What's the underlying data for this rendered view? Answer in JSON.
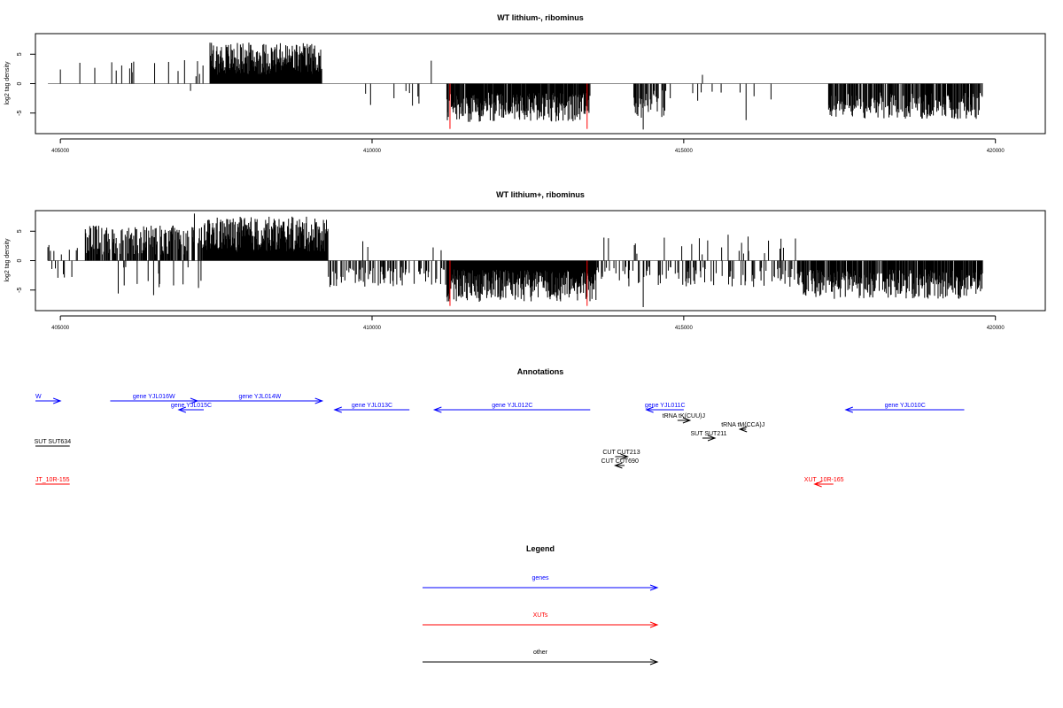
{
  "chart_data": [
    {
      "type": "bar",
      "title": "WT lithium-, ribominus",
      "xlabel": "",
      "ylabel": "log2 tag density",
      "xlim": [
        404600,
        420800
      ],
      "ylim": [
        -8.5,
        8.5
      ],
      "yticks": [
        "-5",
        "0",
        "5"
      ],
      "xticks": [
        "405000",
        "410000",
        "415000",
        "420000"
      ],
      "grid": false,
      "baseline": 0,
      "segments": [
        {
          "from": 404800,
          "to": 406600,
          "sign": 1,
          "density": 0.06,
          "amp": [
            1,
            3.8
          ],
          "neg_prob": 0.05
        },
        {
          "from": 406600,
          "to": 407300,
          "sign": 1,
          "density": 0.08,
          "amp": [
            1,
            4
          ],
          "neg_prob": 0.15
        },
        {
          "from": 407400,
          "to": 409200,
          "sign": 1,
          "density": 1.0,
          "amp": [
            1.5,
            7
          ],
          "neg_prob": 0
        },
        {
          "from": 409200,
          "to": 411200,
          "sign": -1,
          "density": 0.02,
          "amp": [
            1,
            4
          ],
          "neg_prob": 0
        },
        {
          "from": 411200,
          "to": 413500,
          "sign": -1,
          "density": 0.9,
          "amp": [
            1.5,
            6.5
          ],
          "neg_prob": 0
        },
        {
          "from": 414200,
          "to": 414800,
          "sign": -1,
          "density": 0.5,
          "amp": [
            1,
            6
          ],
          "neg_prob": 0
        },
        {
          "from": 414800,
          "to": 417300,
          "sign": -1,
          "density": 0.02,
          "amp": [
            1,
            3
          ],
          "neg_prob": 0
        },
        {
          "from": 417300,
          "to": 419800,
          "sign": -1,
          "density": 0.7,
          "amp": [
            1.5,
            6
          ],
          "neg_prob": 0
        }
      ],
      "highlight_bars": [
        {
          "x": 411250,
          "value": -7.7,
          "color": "#ff0000"
        },
        {
          "x": 413450,
          "value": -7.7,
          "color": "#ff0000"
        }
      ],
      "isolated_bars": [
        {
          "x": 410950,
          "value": 3.9
        },
        {
          "x": 415300,
          "value": 1.5
        },
        {
          "x": 416000,
          "value": -6.2
        },
        {
          "x": 414350,
          "value": -7.8
        }
      ]
    },
    {
      "type": "bar",
      "title": "WT lithium+, ribominus",
      "xlabel": "",
      "ylabel": "log2 tag density",
      "xlim": [
        404600,
        420800
      ],
      "ylim": [
        -8.5,
        8.5
      ],
      "yticks": [
        "-5",
        "0",
        "5"
      ],
      "xticks": [
        "405000",
        "410000",
        "415000",
        "420000"
      ],
      "grid": false,
      "baseline": 0,
      "segments": [
        {
          "from": 404800,
          "to": 405400,
          "sign": 1,
          "density": 0.2,
          "amp": [
            1,
            3
          ],
          "neg_prob": 0.35
        },
        {
          "from": 405400,
          "to": 407300,
          "sign": 1,
          "density": 0.75,
          "amp": [
            1,
            6
          ],
          "neg_prob": 0.1
        },
        {
          "from": 407300,
          "to": 409300,
          "sign": 1,
          "density": 1.0,
          "amp": [
            1.5,
            7.5
          ],
          "neg_prob": 0
        },
        {
          "from": 409300,
          "to": 411200,
          "sign": -1,
          "density": 0.35,
          "amp": [
            1,
            4.5
          ],
          "neg_prob": 0.05
        },
        {
          "from": 411200,
          "to": 413600,
          "sign": -1,
          "density": 1.0,
          "amp": [
            1.5,
            7
          ],
          "neg_prob": 0
        },
        {
          "from": 413600,
          "to": 416800,
          "sign": -1,
          "density": 0.3,
          "amp": [
            1,
            4.5
          ],
          "neg_prob": 0.2
        },
        {
          "from": 416800,
          "to": 419800,
          "sign": -1,
          "density": 0.8,
          "amp": [
            1.5,
            6.5
          ],
          "neg_prob": 0
        }
      ],
      "highlight_bars": [
        {
          "x": 411250,
          "value": -7.7,
          "color": "#ff0000"
        },
        {
          "x": 413450,
          "value": -7.7,
          "color": "#ff0000"
        }
      ],
      "isolated_bars": [
        {
          "x": 407150,
          "value": 8.0
        },
        {
          "x": 415250,
          "value": 3.8
        },
        {
          "x": 414350,
          "value": -7.9
        }
      ]
    }
  ],
  "annotations": {
    "title": "Annotations",
    "features": [
      {
        "label": "W",
        "x1": 404600,
        "x2": 405000,
        "row": 0,
        "dir": "right",
        "color": "#0000ff",
        "label_x": 404600,
        "anchor": "start"
      },
      {
        "label": "gene YJL016W",
        "x1": 405800,
        "x2": 407200,
        "row": 0,
        "dir": "right",
        "color": "#0000ff"
      },
      {
        "label": "gene YJL014W",
        "x1": 407200,
        "x2": 409200,
        "row": 0,
        "dir": "right",
        "color": "#0000ff"
      },
      {
        "label": "gene YJL015C",
        "x1": 406900,
        "x2": 407300,
        "row": 1,
        "dir": "left",
        "color": "#0000ff"
      },
      {
        "label": "gene YJL013C",
        "x1": 409400,
        "x2": 410600,
        "row": 2,
        "dir": "left",
        "color": "#0000ff"
      },
      {
        "label": "gene YJL012C",
        "x1": 411000,
        "x2": 413500,
        "row": 2,
        "dir": "left",
        "color": "#0000ff"
      },
      {
        "label": "gene YJL011C",
        "x1": 414400,
        "x2": 415000,
        "row": 2,
        "dir": "left",
        "color": "#0000ff"
      },
      {
        "label": "gene YJL010C",
        "x1": 417600,
        "x2": 419500,
        "row": 2,
        "dir": "left",
        "color": "#0000ff"
      },
      {
        "label": "tRNA tK(CUU)J",
        "x1": 414900,
        "x2": 415100,
        "row": 3,
        "dir": "right",
        "color": "#000000"
      },
      {
        "label": "tRNA tM(CCA)J",
        "x1": 415900,
        "x2": 416000,
        "row": 4,
        "dir": "left",
        "color": "#000000"
      },
      {
        "label": "SUT SUT211",
        "x1": 415300,
        "x2": 415500,
        "row": 5,
        "dir": "right",
        "color": "#000000"
      },
      {
        "label": "SUT SUT634",
        "x1": 404600,
        "x2": 405150,
        "row": 6,
        "dir": "none",
        "color": "#000000"
      },
      {
        "label": "CUT CUT213",
        "x1": 413900,
        "x2": 414100,
        "row": 7,
        "dir": "right",
        "color": "#000000"
      },
      {
        "label": "CUT CUT690",
        "x1": 413900,
        "x2": 414050,
        "row": 8,
        "dir": "left",
        "color": "#000000"
      },
      {
        "label": "JT_10R-155",
        "x1": 404600,
        "x2": 405150,
        "row": 9,
        "dir": "none",
        "color": "#ff0000",
        "label_x": 404600,
        "anchor": "start"
      },
      {
        "label": "XUT_10R-165",
        "x1": 417100,
        "x2": 417400,
        "row": 9,
        "dir": "left",
        "color": "#ff0000"
      }
    ]
  },
  "legend": {
    "title": "Legend",
    "items": [
      {
        "label": "genes",
        "color": "#0000ff"
      },
      {
        "label": "XUTs",
        "color": "#ff0000"
      },
      {
        "label": "other",
        "color": "#000000"
      }
    ]
  }
}
